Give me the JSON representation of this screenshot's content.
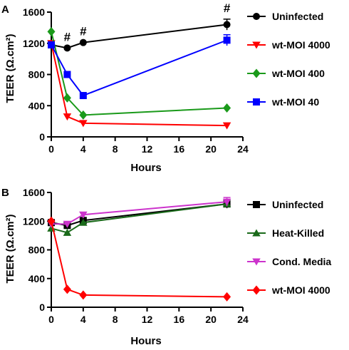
{
  "chart_data": [
    {
      "panel": "A",
      "type": "line",
      "xlabel": "Hours",
      "ylabel": "TEER (Ω.cm²)",
      "xlim": [
        0,
        24
      ],
      "ylim": [
        0,
        1600
      ],
      "xticks": [
        0,
        4,
        8,
        12,
        16,
        20,
        24
      ],
      "yticks": [
        0,
        400,
        800,
        1200,
        1600
      ],
      "legend_position": "right",
      "grid": false,
      "annotations": [
        {
          "text": "#",
          "x": 2
        },
        {
          "text": "#",
          "x": 4
        },
        {
          "text": "#",
          "x": 22
        }
      ],
      "series": [
        {
          "name": "Uninfected",
          "color": "#000000",
          "marker": "circle",
          "x": [
            0,
            2,
            4,
            22
          ],
          "y": [
            1180,
            1140,
            1210,
            1440
          ],
          "err": [
            0,
            0,
            0,
            70
          ]
        },
        {
          "name": "wt-MOI 4000",
          "color": "#ff0000",
          "marker": "triangle-down",
          "x": [
            0,
            2,
            4,
            22
          ],
          "y": [
            1200,
            260,
            175,
            145
          ],
          "err": [
            0,
            0,
            0,
            0
          ]
        },
        {
          "name": "wt-MOI 400",
          "color": "#1a9a1a",
          "marker": "diamond",
          "x": [
            0,
            2,
            4,
            22
          ],
          "y": [
            1350,
            500,
            280,
            370
          ],
          "err": [
            0,
            0,
            0,
            0
          ]
        },
        {
          "name": "wt-MOI 40",
          "color": "#0000ff",
          "marker": "square",
          "x": [
            0,
            2,
            4,
            22
          ],
          "y": [
            1180,
            800,
            530,
            1240
          ],
          "err": [
            0,
            0,
            0,
            70
          ]
        }
      ]
    },
    {
      "panel": "B",
      "type": "line",
      "xlabel": "Hours",
      "ylabel": "TEER (Ω.cm²)",
      "xlim": [
        0,
        24
      ],
      "ylim": [
        0,
        1600
      ],
      "xticks": [
        0,
        4,
        8,
        12,
        16,
        20,
        24
      ],
      "yticks": [
        0,
        400,
        800,
        1200,
        1600
      ],
      "legend_position": "right",
      "grid": false,
      "annotations": [],
      "series": [
        {
          "name": "Uninfected",
          "color": "#000000",
          "marker": "square",
          "x": [
            0,
            2,
            4,
            22
          ],
          "y": [
            1180,
            1140,
            1210,
            1440
          ],
          "err": [
            0,
            0,
            0,
            60
          ]
        },
        {
          "name": "Heat-Killed",
          "color": "#1a6a1a",
          "marker": "triangle-up",
          "x": [
            0,
            2,
            4,
            22
          ],
          "y": [
            1100,
            1040,
            1180,
            1440
          ],
          "err": [
            0,
            0,
            0,
            0
          ]
        },
        {
          "name": "Cond. Media",
          "color": "#cc33cc",
          "marker": "triangle-down",
          "x": [
            0,
            2,
            4,
            22
          ],
          "y": [
            1160,
            1160,
            1290,
            1470
          ],
          "err": [
            0,
            0,
            0,
            60
          ]
        },
        {
          "name": "wt-MOI 4000",
          "color": "#ff0000",
          "marker": "diamond",
          "x": [
            0,
            2,
            4,
            22
          ],
          "y": [
            1200,
            250,
            170,
            145
          ],
          "err": [
            0,
            0,
            0,
            0
          ]
        }
      ]
    }
  ]
}
